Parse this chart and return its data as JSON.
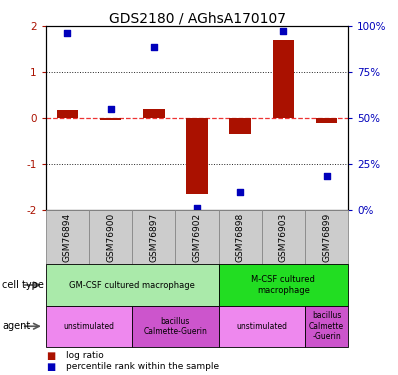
{
  "title": "GDS2180 / AGhsA170107",
  "samples": [
    "GSM76894",
    "GSM76900",
    "GSM76897",
    "GSM76902",
    "GSM76898",
    "GSM76903",
    "GSM76899"
  ],
  "log_ratio": [
    0.18,
    -0.05,
    0.2,
    -1.65,
    -0.35,
    1.7,
    -0.1
  ],
  "percentile_y": [
    1.85,
    0.2,
    1.55,
    -1.95,
    -1.6,
    1.9,
    -1.25
  ],
  "ylim": [
    -2,
    2
  ],
  "yticks_left": [
    -2,
    -1,
    0,
    1,
    2
  ],
  "yticks_right_labels": [
    "0%",
    "25%",
    "50%",
    "75%",
    "100%"
  ],
  "cell_type_groups": [
    {
      "label": "GM-CSF cultured macrophage",
      "start": 0,
      "end": 4,
      "color": "#aaeaaa"
    },
    {
      "label": "M-CSF cultured\nmacrophage",
      "start": 4,
      "end": 7,
      "color": "#22dd22"
    }
  ],
  "agent_groups": [
    {
      "label": "unstimulated",
      "start": 0,
      "end": 2,
      "color": "#ee88ee"
    },
    {
      "label": "bacillus\nCalmette-Guerin",
      "start": 2,
      "end": 4,
      "color": "#cc55cc"
    },
    {
      "label": "unstimulated",
      "start": 4,
      "end": 6,
      "color": "#ee88ee"
    },
    {
      "label": "bacillus\nCalmette\n-Guerin",
      "start": 6,
      "end": 7,
      "color": "#cc55cc"
    }
  ],
  "bar_color": "#aa1100",
  "dot_color": "#0000bb",
  "zero_line_color": "#ee3333",
  "grid_line_color": "#222222",
  "bar_width": 0.5,
  "tick_fontsize": 7.5,
  "sample_fontsize": 6.5,
  "title_fontsize": 10,
  "sample_bg_color": "#cccccc",
  "sample_border_color": "#888888",
  "left_color": "#aa1100",
  "right_color": "#0000bb"
}
